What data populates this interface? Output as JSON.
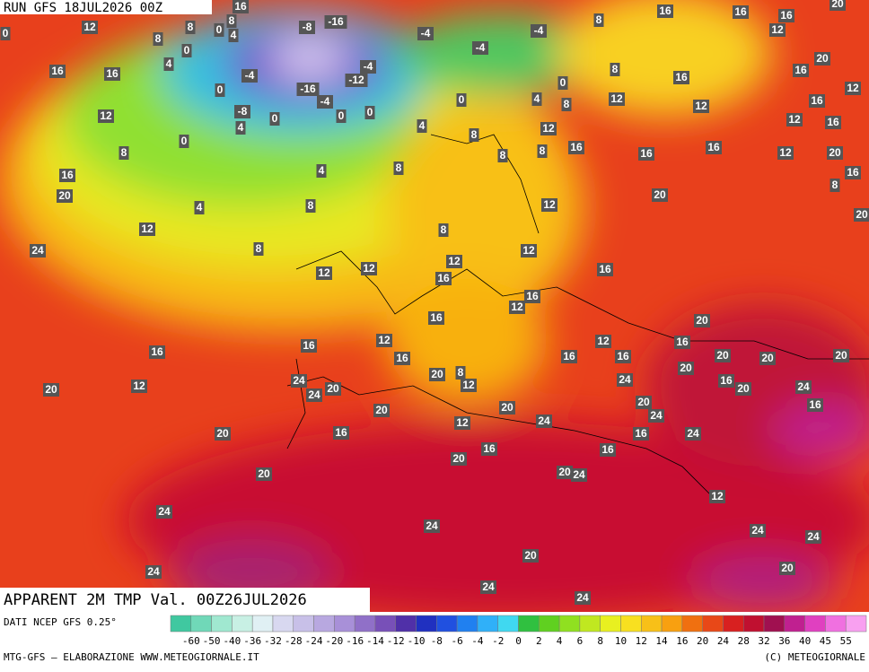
{
  "header": {
    "run": "RUN GFS 18JUL2026 00Z"
  },
  "map": {
    "title": "APPARENT 2M TMP Val. 00Z26JUL2026",
    "labels": [
      0,
      12,
      8,
      8,
      0,
      8,
      4,
      16,
      0,
      4,
      16,
      16,
      12,
      0,
      8,
      16,
      20,
      4,
      12,
      24,
      8,
      8,
      4,
      8,
      4,
      0,
      0,
      0,
      4,
      -8,
      -4,
      0,
      -8,
      -16,
      -16,
      -12,
      -4,
      -4,
      -4,
      -4,
      -4,
      0,
      0,
      4,
      8,
      8,
      8,
      8,
      12,
      12,
      16,
      12,
      8,
      8,
      16,
      16,
      16,
      12,
      20,
      20,
      16,
      12,
      16,
      12,
      12,
      16,
      16,
      16,
      12,
      16,
      20,
      16,
      8,
      20,
      20,
      16,
      12,
      8,
      12,
      16,
      12,
      12,
      16,
      12,
      16,
      16,
      16,
      12,
      12,
      16,
      16,
      20,
      16,
      20,
      20,
      20,
      20,
      8,
      12,
      20,
      24,
      12,
      16,
      20,
      20,
      16,
      24,
      24,
      20,
      16,
      12,
      20,
      20,
      20,
      24,
      20,
      24,
      16,
      16,
      24,
      16,
      20,
      24,
      16,
      20,
      20,
      24,
      12,
      24,
      24,
      20,
      24,
      24,
      24,
      20,
      24,
      24,
      24,
      24,
      24
    ]
  },
  "legend": {
    "source": "DATI NCEP GFS 0.25°",
    "ticks": [
      -60,
      -50,
      -40,
      -36,
      -32,
      -28,
      -24,
      -20,
      -16,
      -14,
      -12,
      -10,
      -8,
      -6,
      -4,
      -2,
      0,
      2,
      4,
      6,
      8,
      10,
      12,
      14,
      16,
      20,
      24,
      28,
      32,
      36,
      40,
      45,
      55
    ],
    "colors": [
      "#40c8a0",
      "#70d8b8",
      "#a0e8d0",
      "#c8f0e4",
      "#e0f0f4",
      "#d8d8f0",
      "#c8c0e8",
      "#b8a8e0",
      "#a890d8",
      "#9070c8",
      "#7850b8",
      "#5030a8",
      "#2030c0",
      "#2050e0",
      "#2080f0",
      "#30b0f8",
      "#40d8f0",
      "#30c040",
      "#60d020",
      "#90e020",
      "#c0e820",
      "#e8f020",
      "#f8e020",
      "#f8c018",
      "#f8a010",
      "#f07010",
      "#e84818",
      "#d82020",
      "#c01030",
      "#a01050",
      "#c02090",
      "#e040c0",
      "#f070e0",
      "#f8a0f0"
    ]
  },
  "footer": {
    "left": "MTG-GFS — ELABORAZIONE WWW.METEOGIORNALE.IT",
    "right": "(C) METEOGIORNALE"
  }
}
